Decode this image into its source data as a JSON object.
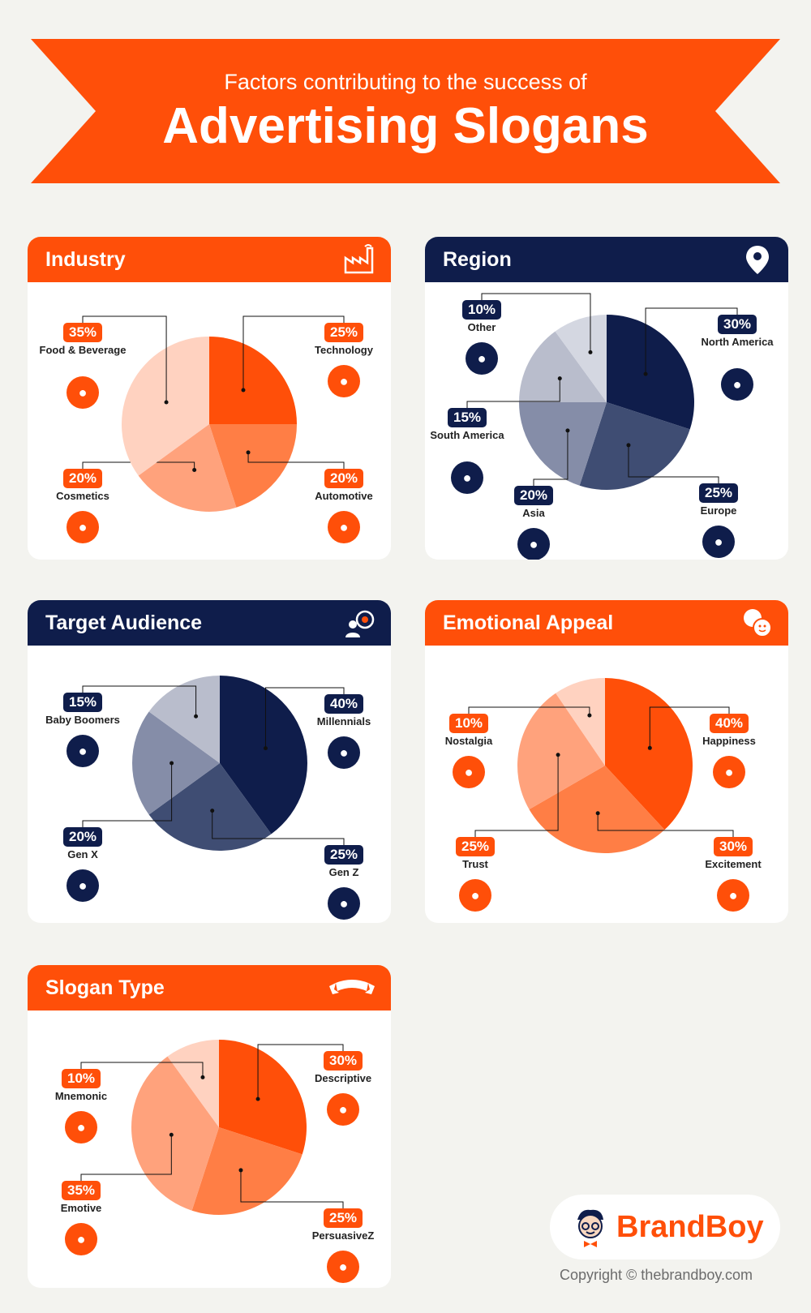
{
  "header": {
    "subtitle": "Factors contributing to the success of",
    "title": "Advertising Slogans"
  },
  "colors": {
    "orange": "#ff4f09",
    "navy": "#0f1d4b",
    "background": "#f3f3ef"
  },
  "chart_data": [
    {
      "type": "pie",
      "title": "Industry",
      "header_icon": "factory-icon",
      "series": [
        {
          "name": "Technology",
          "value": 25,
          "color": "#ff4f09",
          "icon": "chip-icon"
        },
        {
          "name": "Automotive",
          "value": 20,
          "color": "#ff7e45",
          "icon": "car-icon"
        },
        {
          "name": "Cosmetics",
          "value": 20,
          "color": "#ffa27c",
          "icon": "cosmetics-icon"
        },
        {
          "name": "Food & Beverage",
          "value": 35,
          "color": "#ffd2c0",
          "icon": "food-icon"
        }
      ]
    },
    {
      "type": "pie",
      "title": "Region",
      "header_icon": "location-pin-icon",
      "series": [
        {
          "name": "North America",
          "value": 30,
          "color": "#0f1d4b",
          "icon": "north-america-icon"
        },
        {
          "name": "Europe",
          "value": 25,
          "color": "#3f4d73",
          "icon": "europe-icon"
        },
        {
          "name": "Asia",
          "value": 20,
          "color": "#858da8",
          "icon": "asia-icon"
        },
        {
          "name": "South America",
          "value": 15,
          "color": "#b9bdcc",
          "icon": "south-america-icon"
        },
        {
          "name": "Other",
          "value": 10,
          "color": "#d4d7e1",
          "icon": "other-region-icon"
        }
      ]
    },
    {
      "type": "pie",
      "title": "Target Audience",
      "header_icon": "target-audience-icon",
      "series": [
        {
          "name": "Millennials",
          "value": 40,
          "color": "#0f1d4b",
          "icon": "millennial-icon"
        },
        {
          "name": "Gen Z",
          "value": 25,
          "color": "#3f4d73",
          "icon": "gen-z-icon"
        },
        {
          "name": "Gen X",
          "value": 20,
          "color": "#858da8",
          "icon": "gen-x-icon"
        },
        {
          "name": "Baby Boomers",
          "value": 15,
          "color": "#b9bdcc",
          "icon": "elderly-couple-icon"
        }
      ]
    },
    {
      "type": "pie",
      "title": "Emotional Appeal",
      "header_icon": "emotions-icon",
      "series": [
        {
          "name": "Happiness",
          "value": 40,
          "color": "#ff4f09",
          "icon": "smiley-icon"
        },
        {
          "name": "Excitement",
          "value": 30,
          "color": "#ff7e45",
          "icon": "jumping-person-icon"
        },
        {
          "name": "Trust",
          "value": 25,
          "color": "#ffa27c",
          "icon": "handshake-heart-icon"
        },
        {
          "name": "Nostalgia",
          "value": 10,
          "color": "#ffd2c0",
          "icon": "kids-playing-icon"
        }
      ]
    },
    {
      "type": "pie",
      "title": "Slogan Type",
      "header_icon": "ribbon-banner-icon",
      "series": [
        {
          "name": "Descriptive",
          "value": 30,
          "color": "#ff4f09",
          "icon": "document-pen-icon"
        },
        {
          "name": "PersuasiveZ",
          "value": 25,
          "color": "#ff7e45",
          "icon": "persuasion-icon"
        },
        {
          "name": "Emotive",
          "value": 35,
          "color": "#ffa27c",
          "icon": "emotive-faces-icon"
        },
        {
          "name": "Mnemonic",
          "value": 10,
          "color": "#ffd2c0",
          "icon": "brain-memory-icon"
        }
      ]
    }
  ],
  "logo": {
    "text": "BrandBoy",
    "icon": "brandboy-mascot-icon"
  },
  "copyright": "Copyright © thebrandboy.com"
}
